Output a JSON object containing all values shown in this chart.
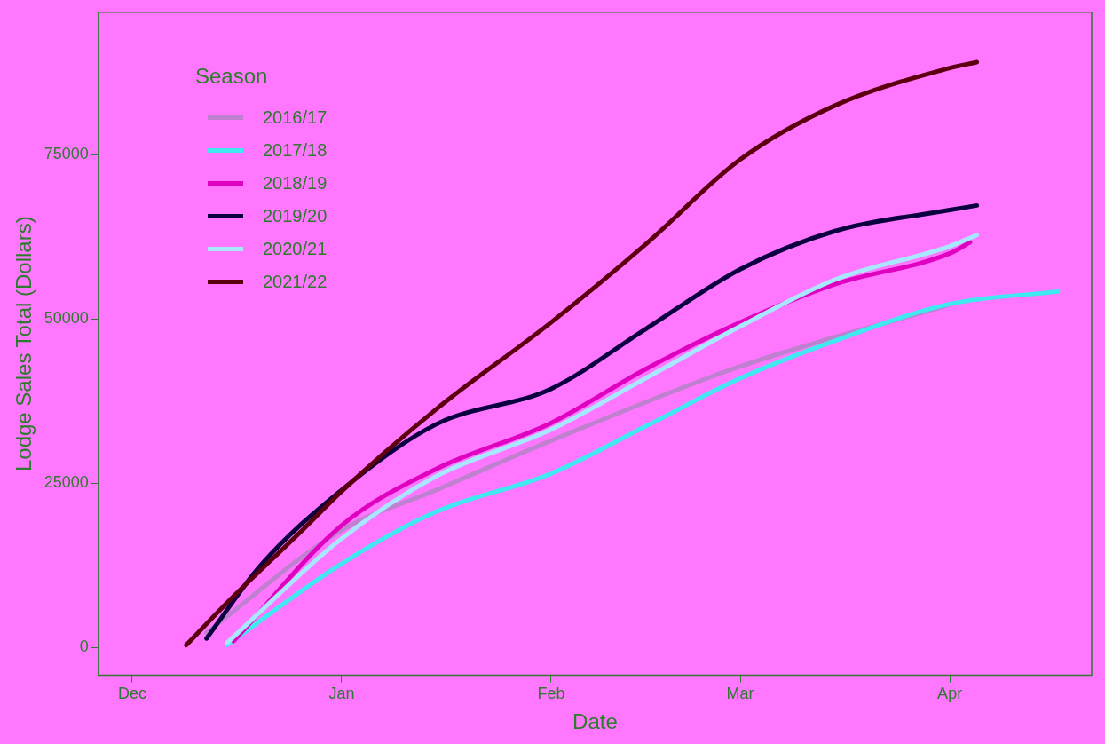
{
  "chart_data": {
    "type": "line",
    "xlabel": "Date",
    "ylabel": "Lodge Sales Total (Dollars)",
    "legend_title": "Season",
    "legend": "top left",
    "grid": false,
    "marker": "none",
    "line_style": "solid",
    "xlim": [
      "2021-11-26",
      "2022-04-22"
    ],
    "xticks": [
      {
        "value": "2021-12-01",
        "label": "Dec"
      },
      {
        "value": "2022-01-01",
        "label": "Jan"
      },
      {
        "value": "2022-02-01",
        "label": "Feb"
      },
      {
        "value": "2022-03-01",
        "label": "Mar"
      },
      {
        "value": "2022-04-01",
        "label": "Apr"
      }
    ],
    "ylim": [
      -4200,
      96700
    ],
    "yticks": [
      0,
      25000,
      50000,
      75000
    ],
    "series": [
      {
        "name": "2016/17",
        "color": "#c080d0",
        "x": [
          "2021-12-12",
          "2022-01-01",
          "2022-01-15",
          "2022-02-01",
          "2022-03-01",
          "2022-04-01"
        ],
        "values": [
          2300,
          17900,
          24000,
          31500,
          42800,
          52200
        ]
      },
      {
        "name": "2017/18",
        "color": "#40e8f0",
        "x": [
          "2021-12-15",
          "2022-01-01",
          "2022-01-15",
          "2022-02-01",
          "2022-02-15",
          "2022-03-01",
          "2022-03-15",
          "2022-04-01",
          "2022-04-17"
        ],
        "values": [
          400,
          12800,
          20700,
          26500,
          33700,
          41000,
          46700,
          52300,
          54200
        ]
      },
      {
        "name": "2018/19",
        "color": "#e000c0",
        "x": [
          "2021-12-16",
          "2022-01-01",
          "2022-01-15",
          "2022-02-01",
          "2022-02-15",
          "2022-03-01",
          "2022-03-15",
          "2022-04-01",
          "2022-04-04"
        ],
        "values": [
          1000,
          18600,
          27200,
          34200,
          42400,
          49500,
          55300,
          60000,
          61700
        ]
      },
      {
        "name": "2019/20",
        "color": "#0b0040",
        "x": [
          "2021-12-12",
          "2021-12-20",
          "2022-01-01",
          "2022-01-15",
          "2022-02-01",
          "2022-02-15",
          "2022-03-01",
          "2022-03-15",
          "2022-04-01",
          "2022-04-05"
        ],
        "values": [
          1400,
          12500,
          24000,
          34000,
          39400,
          48500,
          57600,
          63400,
          66600,
          67300
        ]
      },
      {
        "name": "2020/21",
        "color": "#a8e8ff",
        "x": [
          "2021-12-15",
          "2022-01-01",
          "2022-01-15",
          "2022-02-01",
          "2022-02-15",
          "2022-03-01",
          "2022-03-15",
          "2022-04-01",
          "2022-04-05"
        ],
        "values": [
          700,
          16600,
          26100,
          33200,
          41000,
          48900,
          56000,
          61100,
          62800
        ]
      },
      {
        "name": "2021/22",
        "color": "#5c0010",
        "x": [
          "2021-12-09",
          "2021-12-15",
          "2021-12-26",
          "2022-01-01",
          "2022-01-15",
          "2022-02-01",
          "2022-02-15",
          "2022-03-01",
          "2022-03-15",
          "2022-04-01",
          "2022-04-05"
        ],
        "values": [
          400,
          6800,
          17700,
          23800,
          36300,
          49500,
          61400,
          74300,
          82500,
          88200,
          89100
        ]
      }
    ]
  }
}
